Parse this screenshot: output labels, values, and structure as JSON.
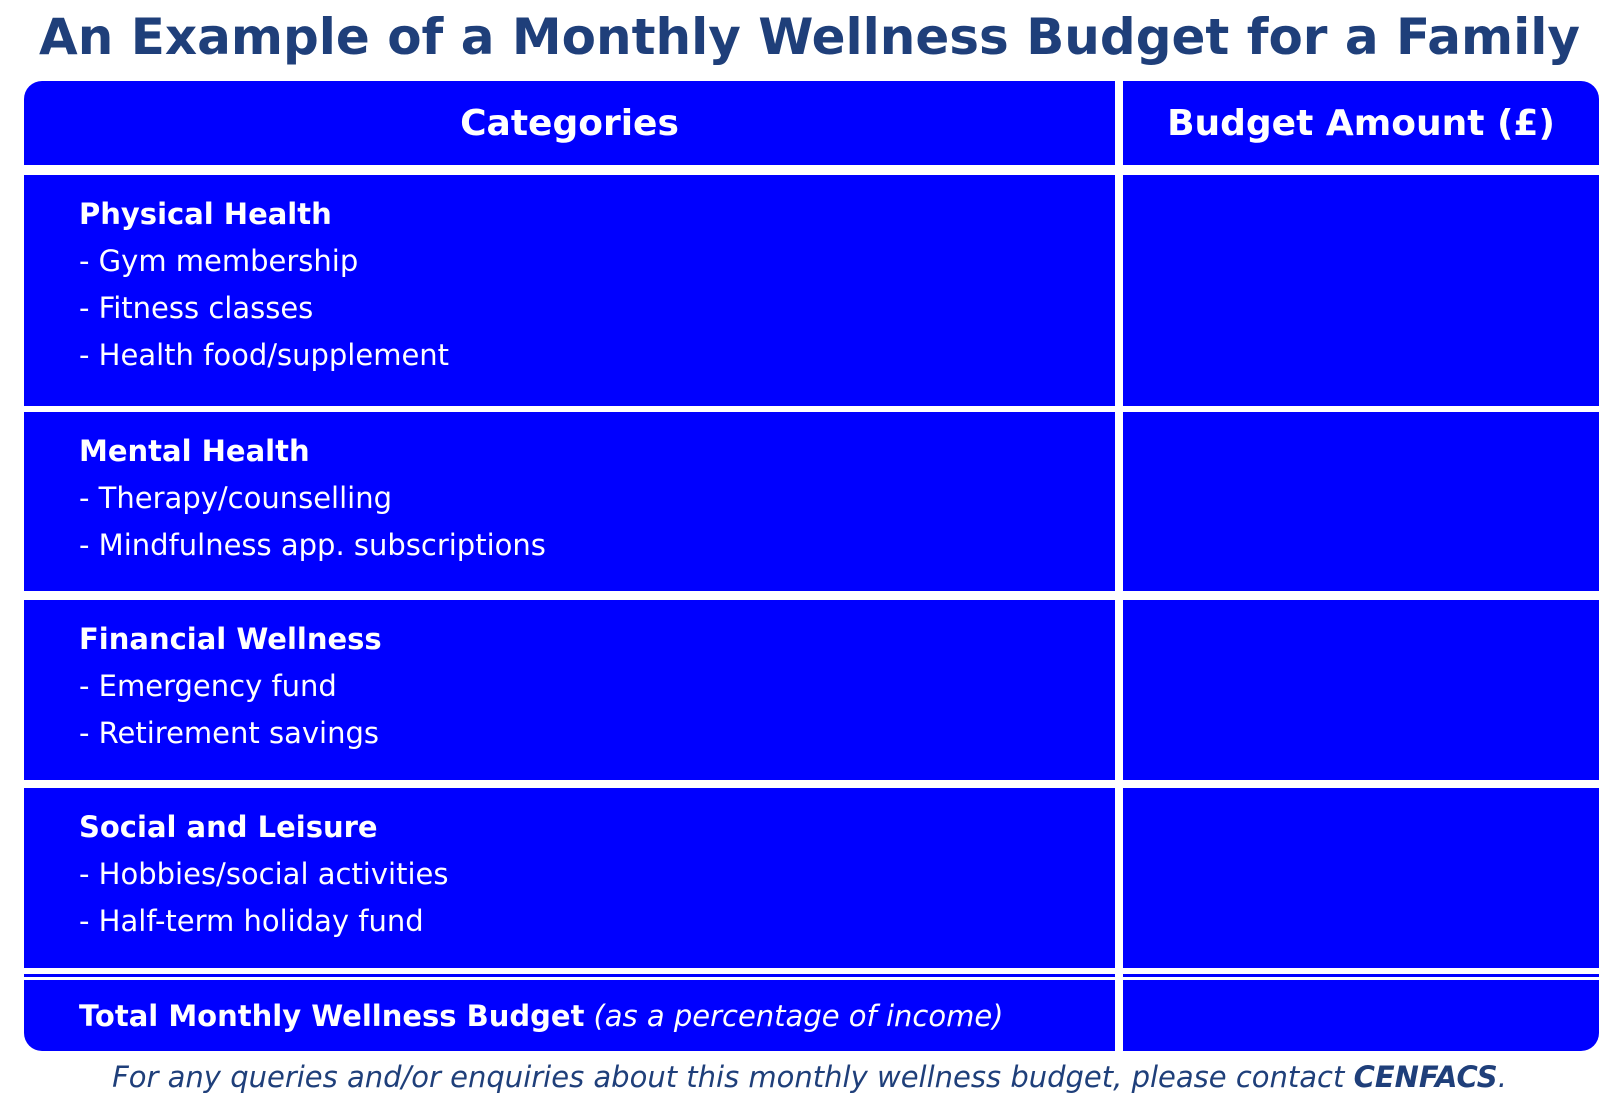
{
  "title": "An Example of a Monthly Wellness Budget for a Family",
  "table": {
    "headers": {
      "categories": "Categories",
      "budget_amount": "Budget Amount (£)"
    },
    "rows": [
      {
        "category": "Physical Health",
        "items": [
          "- Gym membership",
          "- Fitness classes",
          "- Health food/supplement"
        ],
        "amount": ""
      },
      {
        "category": "Mental Health",
        "items": [
          "- Therapy/counselling",
          "- Mindfulness app. subscriptions"
        ],
        "amount": ""
      },
      {
        "category": "Financial Wellness",
        "items": [
          "- Emergency fund",
          "- Retirement savings"
        ],
        "amount": ""
      },
      {
        "category": "Social and Leisure",
        "items": [
          "- Hobbies/social activities",
          "- Half-term holiday fund"
        ],
        "amount": ""
      }
    ],
    "total": {
      "label": "Total Monthly Wellness Budget",
      "note": "(as a percentage of income)",
      "amount": ""
    }
  },
  "footer": {
    "text": "For any queries and/or enquiries about this monthly wellness budget, please contact ",
    "organization": "CENFACS",
    "end": "."
  },
  "colors": {
    "title": "#1f3f7a",
    "cell_fill": "#0000ff",
    "cell_text": "#ffffff"
  }
}
